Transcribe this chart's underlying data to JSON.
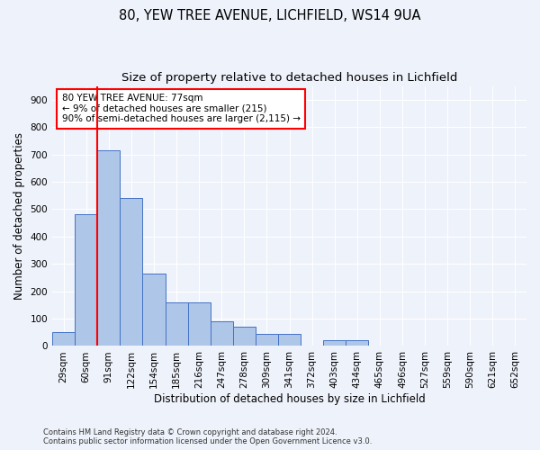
{
  "title1": "80, YEW TREE AVENUE, LICHFIELD, WS14 9UA",
  "title2": "Size of property relative to detached houses in Lichfield",
  "xlabel": "Distribution of detached houses by size in Lichfield",
  "ylabel": "Number of detached properties",
  "footnote": "Contains HM Land Registry data © Crown copyright and database right 2024.\nContains public sector information licensed under the Open Government Licence v3.0.",
  "bin_labels": [
    "29sqm",
    "60sqm",
    "91sqm",
    "122sqm",
    "154sqm",
    "185sqm",
    "216sqm",
    "247sqm",
    "278sqm",
    "309sqm",
    "341sqm",
    "372sqm",
    "403sqm",
    "434sqm",
    "465sqm",
    "496sqm",
    "527sqm",
    "559sqm",
    "590sqm",
    "621sqm",
    "652sqm"
  ],
  "bar_values": [
    50,
    480,
    715,
    540,
    265,
    160,
    160,
    90,
    70,
    45,
    45,
    0,
    20,
    20,
    0,
    0,
    0,
    0,
    0,
    0,
    0
  ],
  "bar_color": "#aec6e8",
  "bar_edge_color": "#4472c4",
  "vline_x_index": 1,
  "vline_color": "red",
  "annotation_text": "80 YEW TREE AVENUE: 77sqm\n← 9% of detached houses are smaller (215)\n90% of semi-detached houses are larger (2,115) →",
  "annotation_box_color": "white",
  "annotation_box_edge": "red",
  "ylim": [
    0,
    950
  ],
  "yticks": [
    0,
    100,
    200,
    300,
    400,
    500,
    600,
    700,
    800,
    900
  ],
  "background_color": "#eef2fb",
  "grid_color": "white",
  "title1_fontsize": 10.5,
  "title2_fontsize": 9.5,
  "xlabel_fontsize": 8.5,
  "ylabel_fontsize": 8.5,
  "tick_fontsize": 7.5,
  "annotation_fontsize": 7.5
}
